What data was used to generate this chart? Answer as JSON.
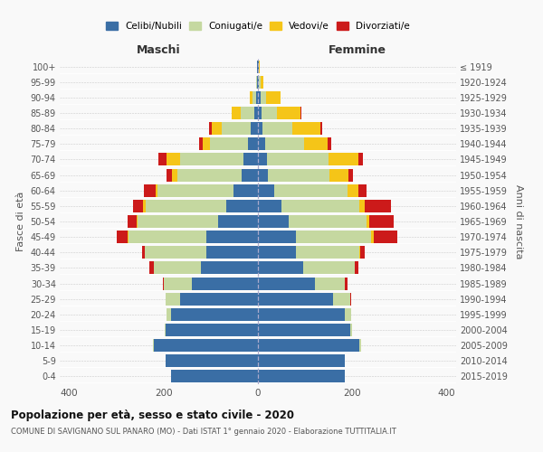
{
  "age_groups": [
    "0-4",
    "5-9",
    "10-14",
    "15-19",
    "20-24",
    "25-29",
    "30-34",
    "35-39",
    "40-44",
    "45-49",
    "50-54",
    "55-59",
    "60-64",
    "65-69",
    "70-74",
    "75-79",
    "80-84",
    "85-89",
    "90-94",
    "95-99",
    "100+"
  ],
  "birth_years": [
    "2015-2019",
    "2010-2014",
    "2005-2009",
    "2000-2004",
    "1995-1999",
    "1990-1994",
    "1985-1989",
    "1980-1984",
    "1975-1979",
    "1970-1974",
    "1965-1969",
    "1960-1964",
    "1955-1959",
    "1950-1954",
    "1945-1949",
    "1940-1944",
    "1935-1939",
    "1930-1934",
    "1925-1929",
    "1920-1924",
    "≤ 1919"
  ],
  "maschi_celibi": [
    185,
    195,
    220,
    195,
    185,
    165,
    140,
    120,
    110,
    110,
    85,
    68,
    52,
    35,
    30,
    22,
    16,
    8,
    4,
    1,
    1
  ],
  "maschi_coniugati": [
    0,
    0,
    2,
    2,
    8,
    30,
    60,
    100,
    130,
    165,
    170,
    170,
    160,
    135,
    135,
    80,
    60,
    28,
    8,
    2,
    1
  ],
  "maschi_vedovi": [
    0,
    0,
    0,
    0,
    0,
    0,
    0,
    0,
    0,
    2,
    2,
    5,
    5,
    12,
    28,
    15,
    22,
    20,
    6,
    1,
    0
  ],
  "maschi_divorziati": [
    0,
    0,
    0,
    0,
    0,
    0,
    2,
    10,
    5,
    22,
    20,
    22,
    25,
    12,
    18,
    8,
    5,
    0,
    0,
    0,
    0
  ],
  "femmine_celibi": [
    185,
    185,
    215,
    195,
    185,
    160,
    120,
    95,
    80,
    80,
    65,
    50,
    35,
    22,
    20,
    15,
    10,
    8,
    5,
    2,
    1
  ],
  "femmine_coniugati": [
    0,
    0,
    4,
    4,
    12,
    35,
    65,
    110,
    135,
    160,
    165,
    165,
    155,
    130,
    130,
    82,
    62,
    32,
    12,
    3,
    1
  ],
  "femmine_vedovi": [
    0,
    0,
    0,
    0,
    0,
    0,
    0,
    0,
    2,
    5,
    5,
    12,
    22,
    40,
    62,
    50,
    60,
    50,
    30,
    6,
    2
  ],
  "femmine_divorziati": [
    0,
    0,
    0,
    0,
    0,
    2,
    5,
    8,
    10,
    50,
    52,
    55,
    18,
    10,
    10,
    8,
    5,
    2,
    0,
    0,
    0
  ],
  "colors": {
    "celibi": "#3a6ea5",
    "coniugati": "#c5d8a0",
    "vedovi": "#f5c518",
    "divorziati": "#cc1a1a"
  },
  "legend_labels": [
    "Celibi/Nubili",
    "Coniugati/e",
    "Vedovi/e",
    "Divorziati/e"
  ],
  "title": "Popolazione per età, sesso e stato civile - 2020",
  "subtitle": "COMUNE DI SAVIGNANO SUL PANARO (MO) - Dati ISTAT 1° gennaio 2020 - Elaborazione TUTTITALIA.IT",
  "xlabel_maschi": "Maschi",
  "xlabel_femmine": "Femmine",
  "ylabel_left": "Fasce di età",
  "ylabel_right": "Anni di nascita",
  "xlim": 420,
  "background_color": "#f9f9f9"
}
